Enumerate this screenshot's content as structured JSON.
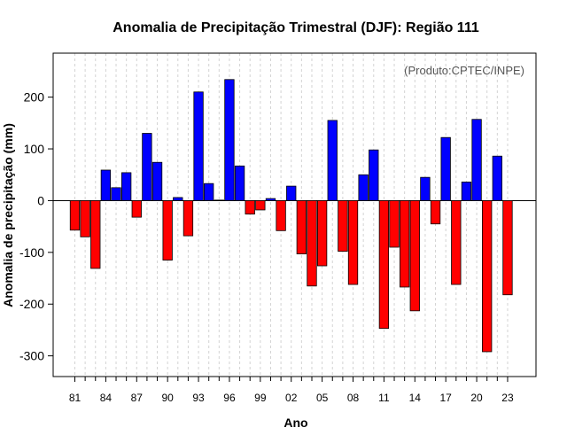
{
  "chart_data": {
    "type": "bar",
    "title": "Anomalia de Precipitação Trimestral (DJF): Região 111",
    "xlabel": "Ano",
    "ylabel": "Anomalia de precipitação (mm)",
    "annotation": "(Produto:CPTEC/INPE)",
    "ylim": [
      -340,
      285
    ],
    "yticks": [
      -300,
      -200,
      -100,
      0,
      100,
      200
    ],
    "ytick_labels": [
      "-300",
      "-200",
      "-100",
      "0",
      "100",
      "200"
    ],
    "xtick_labels": [
      "81",
      "84",
      "87",
      "90",
      "93",
      "96",
      "99",
      "02",
      "05",
      "08",
      "11",
      "14",
      "17",
      "20",
      "23"
    ],
    "grid": "vertical-dashed",
    "positive_color": "#0000ff",
    "negative_color": "#ff0000",
    "categories": [
      "1981",
      "1982",
      "1983",
      "1984",
      "1985",
      "1986",
      "1987",
      "1988",
      "1989",
      "1990",
      "1991",
      "1992",
      "1993",
      "1994",
      "1995",
      "1996",
      "1997",
      "1998",
      "1999",
      "2000",
      "2001",
      "2002",
      "2003",
      "2004",
      "2005",
      "2006",
      "2007",
      "2008",
      "2009",
      "2010",
      "2011",
      "2012",
      "2013",
      "2014",
      "2015",
      "2016",
      "2017",
      "2018",
      "2019",
      "2020",
      "2021",
      "2022",
      "2023"
    ],
    "values": [
      -57,
      -70,
      -131,
      59,
      25,
      54,
      -32,
      130,
      74,
      -115,
      6,
      -68,
      210,
      33,
      1,
      234,
      67,
      -26,
      -18,
      4,
      -58,
      28,
      -103,
      -165,
      -126,
      155,
      -98,
      -162,
      50,
      98,
      -247,
      -90,
      -167,
      -213,
      45,
      -45,
      122,
      -162,
      36,
      157,
      -292,
      86,
      -182
    ]
  }
}
